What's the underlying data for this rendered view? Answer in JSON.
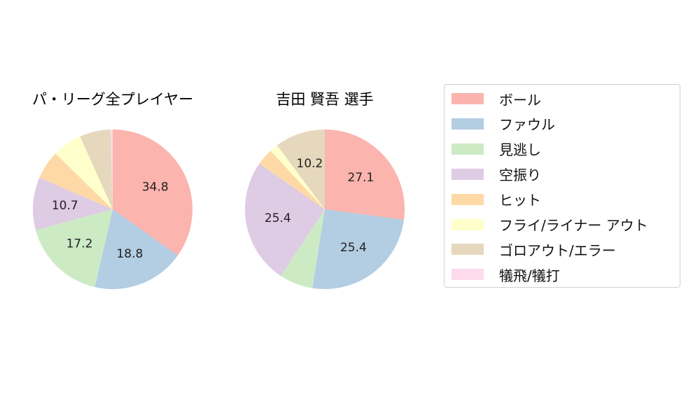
{
  "chart_data": [
    {
      "type": "pie",
      "title": "パ・リーグ全プレイヤー",
      "categories": [
        "ボール",
        "ファウル",
        "見逃し",
        "空振り",
        "ヒット",
        "フライ/ライナー アウト",
        "ゴロアウト/エラー",
        "犠飛/犠打"
      ],
      "values": [
        34.8,
        18.8,
        17.2,
        10.7,
        5.8,
        6.0,
        6.3,
        0.4
      ],
      "data_labels": [
        "34.8",
        "18.8",
        "17.2",
        "10.7",
        "",
        "",
        "",
        ""
      ]
    },
    {
      "type": "pie",
      "title": "吉田 賢吾  選手",
      "categories": [
        "ボール",
        "ファウル",
        "見逃し",
        "空振り",
        "ヒット",
        "フライ/ライナー アウト",
        "ゴロアウト/エラー",
        "犠飛/犠打"
      ],
      "values": [
        27.1,
        25.4,
        6.8,
        25.4,
        3.4,
        1.7,
        10.2,
        0.0
      ],
      "data_labels": [
        "27.1",
        "25.4",
        "",
        "25.4",
        "",
        "",
        "10.2",
        ""
      ]
    }
  ],
  "colors": [
    "#fbb4ae",
    "#b3cde3",
    "#ccebc5",
    "#decbe4",
    "#fed9a6",
    "#ffffcc",
    "#e5d8bd",
    "#fddaec"
  ],
  "legend": {
    "position": "right",
    "items": [
      "ボール",
      "ファウル",
      "見逃し",
      "空振り",
      "ヒット",
      "フライ/ライナー アウト",
      "ゴロアウト/エラー",
      "犠飛/犠打"
    ]
  }
}
